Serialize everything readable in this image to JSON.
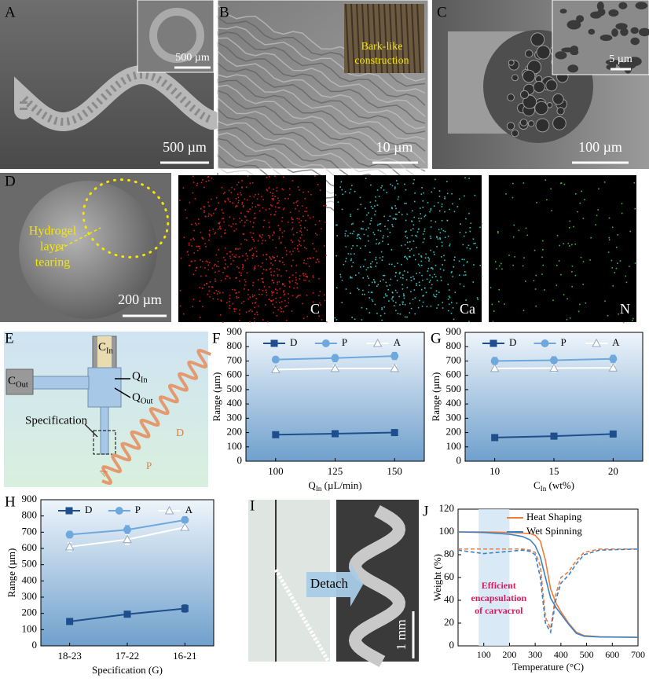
{
  "panels": {
    "A": {
      "label": "A",
      "scale_bar": "500 µm",
      "inset_scale_bar": "500 µm"
    },
    "B": {
      "label": "B",
      "inset_text": [
        "Bark-like",
        "construction"
      ],
      "scale_bar": "10 µm"
    },
    "C": {
      "label": "C",
      "inset_scale_bar": "5 µm",
      "scale_bar": "100 µm"
    },
    "D": {
      "label": "D",
      "annotation": [
        "Hydrogel",
        "layer",
        "tearing"
      ],
      "scale_bar": "200 µm",
      "maps": [
        "C",
        "Ca",
        "N"
      ]
    },
    "E": {
      "label": "E",
      "c_in": {
        "main": "C",
        "sub": "In"
      },
      "c_out": {
        "main": "C",
        "sub": "Out"
      },
      "q_in": {
        "main": "Q",
        "sub": "In"
      },
      "q_out": {
        "main": "Q",
        "sub": "Out"
      },
      "specification": "Specification",
      "d": "D",
      "p": "P",
      "a": "A"
    },
    "I": {
      "label": "I",
      "arrow_text": "Detach",
      "scale_bar": "1 mm"
    }
  },
  "chart_data": [
    {
      "type": "line",
      "panel": "F",
      "ylabel": "Range (µm)",
      "xlabel": {
        "main": "Q",
        "sub": "In",
        "rest": " (µL/min)"
      },
      "categories": [
        "100",
        "125",
        "150"
      ],
      "ylim": [
        0,
        900
      ],
      "yticks": [
        0,
        100,
        200,
        300,
        400,
        500,
        600,
        700,
        800,
        900
      ],
      "legend": "top",
      "series": [
        {
          "name": "D",
          "color": "#1f4e8c",
          "marker": "square",
          "values": [
            185,
            192,
            200
          ],
          "errors": [
            8,
            10,
            12
          ]
        },
        {
          "name": "P",
          "color": "#6fa8dc",
          "marker": "circle",
          "values": [
            710,
            720,
            735
          ],
          "errors": [
            20,
            25,
            25
          ]
        },
        {
          "name": "A",
          "color": "#ffffff",
          "marker": "triangle",
          "values": [
            640,
            648,
            648
          ],
          "errors": [
            15,
            20,
            20
          ]
        }
      ]
    },
    {
      "type": "line",
      "panel": "G",
      "ylabel": "Range (µm)",
      "xlabel": {
        "main": "C",
        "sub": "In",
        "rest": " (wt%)"
      },
      "categories": [
        "10",
        "15",
        "20"
      ],
      "ylim": [
        0,
        900
      ],
      "yticks": [
        0,
        100,
        200,
        300,
        400,
        500,
        600,
        700,
        800,
        900
      ],
      "legend": "top",
      "series": [
        {
          "name": "D",
          "color": "#1f4e8c",
          "marker": "square",
          "values": [
            165,
            175,
            190
          ],
          "errors": [
            15,
            15,
            12
          ]
        },
        {
          "name": "P",
          "color": "#6fa8dc",
          "marker": "circle",
          "values": [
            700,
            705,
            715
          ],
          "errors": [
            25,
            25,
            25
          ]
        },
        {
          "name": "A",
          "color": "#ffffff",
          "marker": "triangle",
          "values": [
            648,
            650,
            652
          ],
          "errors": [
            18,
            25,
            20
          ]
        }
      ]
    },
    {
      "type": "line",
      "panel": "H",
      "ylabel": "Range (µm)",
      "xlabel": {
        "main": "Specification (G)"
      },
      "categories": [
        "18-23",
        "17-22",
        "16-21"
      ],
      "ylim": [
        0,
        900
      ],
      "yticks": [
        0,
        100,
        200,
        300,
        400,
        500,
        600,
        700,
        800,
        900
      ],
      "legend": "top",
      "series": [
        {
          "name": "D",
          "color": "#1f4e8c",
          "marker": "square",
          "values": [
            150,
            195,
            230
          ],
          "errors": [
            15,
            15,
            22
          ]
        },
        {
          "name": "P",
          "color": "#6fa8dc",
          "marker": "circle",
          "values": [
            685,
            715,
            775
          ],
          "errors": [
            20,
            25,
            20
          ]
        },
        {
          "name": "A",
          "color": "#ffffff",
          "marker": "triangle",
          "values": [
            610,
            655,
            730
          ],
          "errors": [
            25,
            30,
            20
          ]
        }
      ]
    },
    {
      "type": "line",
      "panel": "J",
      "xlabel": "Temperature (°C)",
      "ylabel": "Weight (%)",
      "xlim": [
        0,
        700
      ],
      "xticks": [
        100,
        200,
        300,
        400,
        500,
        600,
        700
      ],
      "ylim": [
        0,
        120
      ],
      "yticks": [
        0,
        20,
        40,
        60,
        80,
        100,
        120
      ],
      "shade": [
        80,
        200
      ],
      "annotation": [
        "Efficient",
        "encapsulation",
        "of carvacrol"
      ],
      "legend": "upper right",
      "series": [
        {
          "name": "Heat Shaping",
          "color": "#f07b3f",
          "x": [
            0,
            100,
            200,
            250,
            280,
            300,
            320,
            340,
            360,
            380,
            400,
            430,
            460,
            490,
            550,
            700
          ],
          "values": [
            100,
            100,
            99.5,
            99,
            98.5,
            97,
            92,
            75,
            50,
            38,
            30,
            20,
            12,
            9,
            8,
            7.5
          ]
        },
        {
          "name": "Wet Spinning",
          "color": "#3b82c4",
          "x": [
            0,
            100,
            200,
            250,
            280,
            300,
            320,
            340,
            360,
            380,
            400,
            430,
            460,
            490,
            550,
            700
          ],
          "values": [
            100,
            99.5,
            98,
            96,
            93,
            88,
            78,
            60,
            42,
            34,
            28,
            19,
            11,
            8.5,
            7.8,
            7.5
          ]
        },
        {
          "color": "#f07b3f",
          "dash": true,
          "x": [
            0,
            100,
            200,
            250,
            280,
            300,
            320,
            340,
            360,
            380,
            400,
            430,
            460,
            490,
            550,
            700
          ],
          "values": [
            85,
            85,
            85,
            85,
            84,
            82,
            70,
            25,
            15,
            45,
            60,
            65,
            75,
            82,
            85,
            85
          ]
        },
        {
          "color": "#3b82c4",
          "dash": true,
          "x": [
            0,
            100,
            200,
            250,
            280,
            300,
            320,
            340,
            360,
            380,
            400,
            430,
            460,
            490,
            550,
            700
          ],
          "values": [
            84,
            81,
            83,
            84,
            83,
            80,
            60,
            20,
            12,
            40,
            55,
            62,
            72,
            80,
            84,
            85
          ]
        }
      ]
    }
  ]
}
